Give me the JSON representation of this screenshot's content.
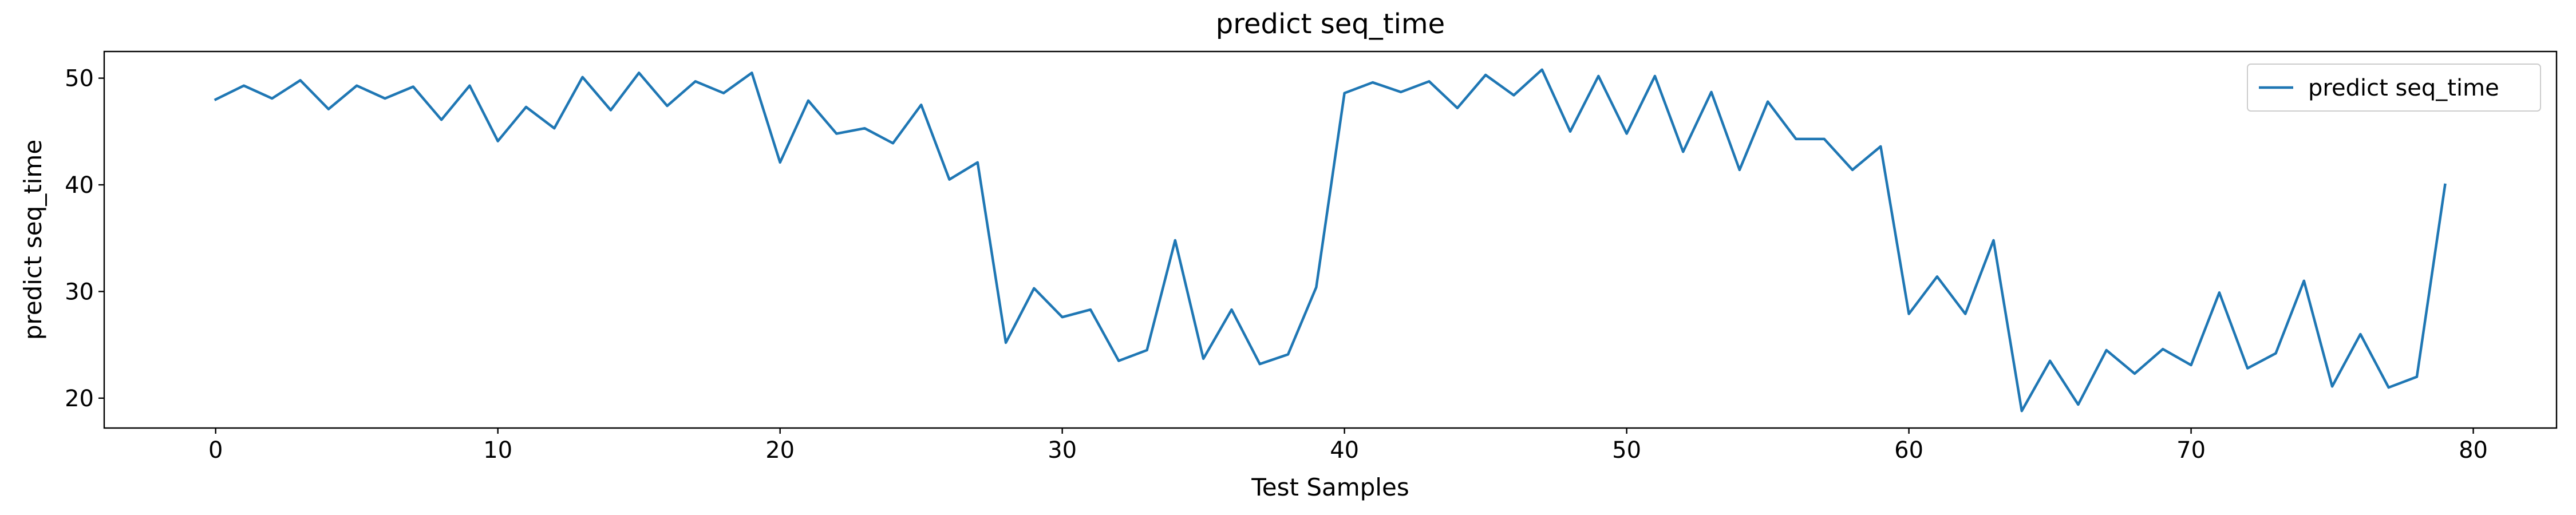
{
  "chart_data": {
    "type": "line",
    "title": "predict seq_time",
    "xlabel": "Test Samples",
    "ylabel": "predict seq_time",
    "xlim": [
      -3.95,
      82.95
    ],
    "ylim": [
      17.2,
      52.5
    ],
    "xticks": [
      0,
      10,
      20,
      30,
      40,
      50,
      60,
      70,
      80
    ],
    "yticks": [
      20,
      30,
      40,
      50
    ],
    "grid": false,
    "legend_position": "top-right",
    "series": [
      {
        "name": "predict seq_time",
        "color": "#1f77b4",
        "x": [
          0,
          1,
          2,
          3,
          4,
          5,
          6,
          7,
          8,
          9,
          10,
          11,
          12,
          13,
          14,
          15,
          16,
          17,
          18,
          19,
          20,
          21,
          22,
          23,
          24,
          25,
          26,
          27,
          28,
          29,
          30,
          31,
          32,
          33,
          34,
          35,
          36,
          37,
          38,
          39,
          40,
          41,
          42,
          43,
          44,
          45,
          46,
          47,
          48,
          49,
          50,
          51,
          52,
          53,
          54,
          55,
          56,
          57,
          58,
          59,
          60,
          61,
          62,
          63,
          64,
          65,
          66,
          67,
          68,
          69,
          70,
          71,
          72,
          73,
          74,
          75,
          76,
          77,
          78,
          79
        ],
        "values": [
          48.0,
          49.3,
          48.1,
          49.8,
          47.1,
          49.3,
          48.1,
          49.2,
          46.1,
          49.3,
          44.1,
          47.3,
          45.3,
          50.1,
          47.0,
          50.5,
          47.4,
          49.7,
          48.6,
          50.5,
          42.1,
          47.9,
          44.8,
          45.3,
          43.9,
          47.5,
          40.5,
          42.1,
          25.2,
          30.3,
          27.6,
          28.3,
          23.5,
          24.5,
          34.8,
          23.7,
          28.3,
          23.2,
          24.1,
          30.4,
          48.6,
          49.6,
          48.7,
          49.7,
          47.2,
          50.3,
          48.4,
          50.8,
          45.0,
          50.2,
          44.8,
          50.2,
          43.1,
          48.7,
          41.4,
          47.8,
          44.3,
          44.3,
          41.4,
          43.6,
          27.9,
          31.4,
          27.9,
          34.8,
          18.8,
          23.5,
          19.4,
          24.5,
          22.3,
          24.6,
          23.1,
          29.9,
          22.8,
          24.2,
          31.0,
          21.1,
          26.0,
          21.0,
          22.0,
          40.0
        ]
      }
    ]
  }
}
